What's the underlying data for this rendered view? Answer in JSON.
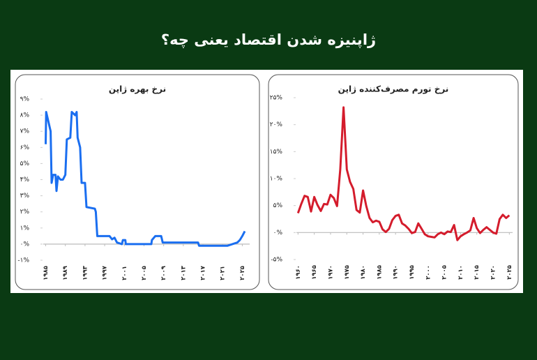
{
  "title": "ژاپنیزه شدن اقتصاد یعنی چه؟",
  "chart_data": [
    {
      "type": "line",
      "title": "نرخ بهره ژاپن",
      "color": "#1a6ef0",
      "x": [
        1985.0,
        1985.1,
        1986.0,
        1986.2,
        1986.5,
        1987.0,
        1987.2,
        1987.5,
        1988.0,
        1988.5,
        1989.0,
        1989.3,
        1990.0,
        1990.3,
        1991.0,
        1991.3,
        1991.5,
        1992.0,
        1992.3,
        1993.0,
        1993.3,
        1995.0,
        1995.2,
        1995.5,
        1998.0,
        1998.5,
        1999.0,
        1999.5,
        2000.5,
        2000.7,
        2001.2,
        2001.3,
        2006.5,
        2006.6,
        2007.3,
        2008.5,
        2008.8,
        2016.0,
        2016.2,
        2022.0,
        2024.0,
        2024.5,
        2025.0,
        2025.5
      ],
      "values": [
        6.2,
        8.2,
        7.0,
        3.8,
        4.3,
        4.3,
        3.3,
        4.2,
        4.0,
        4.0,
        4.3,
        6.5,
        6.6,
        8.2,
        8.0,
        8.2,
        6.6,
        6.0,
        3.8,
        3.8,
        2.3,
        2.2,
        2.0,
        0.5,
        0.5,
        0.3,
        0.4,
        0.1,
        0.0,
        0.25,
        0.25,
        0.0,
        0.0,
        0.25,
        0.5,
        0.5,
        0.1,
        0.1,
        -0.1,
        -0.1,
        0.1,
        0.25,
        0.5,
        0.8
      ],
      "xlim": [
        1984.5,
        2026.5
      ],
      "xticks": [
        {
          "value": 1985,
          "label": "۱۹۸۵"
        },
        {
          "value": 1989,
          "label": "۱۹۸۹"
        },
        {
          "value": 1993,
          "label": "۱۹۹۳"
        },
        {
          "value": 1997,
          "label": "۱۹۹۷"
        },
        {
          "value": 2001,
          "label": "۲۰۰۱"
        },
        {
          "value": 2005,
          "label": "۲۰۰۵"
        },
        {
          "value": 2009,
          "label": "۲۰۰۹"
        },
        {
          "value": 2013,
          "label": "۲۰۱۳"
        },
        {
          "value": 2017,
          "label": "۲۰۱۷"
        },
        {
          "value": 2021,
          "label": "۲۰۲۱"
        },
        {
          "value": 2025,
          "label": "۲۰۲۵"
        }
      ],
      "ylim": [
        -1,
        9
      ],
      "yticks": [
        {
          "value": -1,
          "label": "-۱%"
        },
        {
          "value": 0,
          "label": "۰%"
        },
        {
          "value": 1,
          "label": "۱%"
        },
        {
          "value": 2,
          "label": "۲%"
        },
        {
          "value": 3,
          "label": "۳%"
        },
        {
          "value": 4,
          "label": "۴%"
        },
        {
          "value": 5,
          "label": "۵%"
        },
        {
          "value": 6,
          "label": "۶%"
        },
        {
          "value": 7,
          "label": "۷%"
        },
        {
          "value": 8,
          "label": "۸%"
        },
        {
          "value": 9,
          "label": "۹%"
        }
      ]
    },
    {
      "type": "line",
      "title": "نرخ تورم مصرف‌کننده ژاپن",
      "color": "#d41c2c",
      "x": [
        1960,
        1961,
        1962,
        1963,
        1964,
        1965,
        1966,
        1967,
        1968,
        1969,
        1970,
        1971,
        1972,
        1973,
        1974,
        1975,
        1976,
        1977,
        1978,
        1979,
        1980,
        1981,
        1982,
        1983,
        1984,
        1985,
        1986,
        1987,
        1988,
        1989,
        1990,
        1991,
        1992,
        1993,
        1994,
        1995,
        1996,
        1997,
        1998,
        1999,
        2000,
        2001,
        2002,
        2003,
        2004,
        2005,
        2006,
        2007,
        2008,
        2009,
        2010,
        2011,
        2012,
        2013,
        2014,
        2015,
        2016,
        2017,
        2018,
        2019,
        2020,
        2021,
        2022,
        2023,
        2024,
        2025
      ],
      "values": [
        3.6,
        5.3,
        6.8,
        6.6,
        3.9,
        6.6,
        5.1,
        4.0,
        5.3,
        5.2,
        7.0,
        6.4,
        4.9,
        11.7,
        23.2,
        11.7,
        9.4,
        8.1,
        4.2,
        3.7,
        7.8,
        4.9,
        2.7,
        1.9,
        2.2,
        2.0,
        0.6,
        0.1,
        0.7,
        2.3,
        3.1,
        3.3,
        1.7,
        1.3,
        0.7,
        -0.1,
        0.1,
        1.7,
        0.7,
        -0.3,
        -0.7,
        -0.8,
        -0.9,
        -0.3,
        0.0,
        -0.3,
        0.2,
        0.1,
        1.4,
        -1.4,
        -0.7,
        -0.3,
        0.0,
        0.4,
        2.7,
        0.8,
        -0.1,
        0.5,
        1.0,
        0.5,
        0.0,
        -0.2,
        2.5,
        3.3,
        2.7,
        3.2
      ],
      "xlim": [
        1959.5,
        2026
      ],
      "xticks": [
        {
          "value": 1960,
          "label": "۱۹۶۰"
        },
        {
          "value": 1965,
          "label": "۱۹۶۵"
        },
        {
          "value": 1970,
          "label": "۱۹۷۰"
        },
        {
          "value": 1975,
          "label": "۱۹۷۵"
        },
        {
          "value": 1980,
          "label": "۱۹۸۰"
        },
        {
          "value": 1985,
          "label": "۱۹۸۵"
        },
        {
          "value": 1990,
          "label": "۱۹۹۰"
        },
        {
          "value": 1995,
          "label": "۱۹۹۵"
        },
        {
          "value": 2000,
          "label": "۲۰۰۰"
        },
        {
          "value": 2005,
          "label": "۲۰۰۵"
        },
        {
          "value": 2010,
          "label": "۲۰۱۰"
        },
        {
          "value": 2015,
          "label": "۲۰۱۵"
        },
        {
          "value": 2020,
          "label": "۲۰۲۰"
        },
        {
          "value": 2025,
          "label": "۲۰۲۵"
        }
      ],
      "ylim": [
        -5,
        25
      ],
      "yticks": [
        {
          "value": -5,
          "label": "-۵%"
        },
        {
          "value": 0,
          "label": "۰%"
        },
        {
          "value": 5,
          "label": "۵%"
        },
        {
          "value": 10,
          "label": "۱۰%"
        },
        {
          "value": 15,
          "label": "۱۵%"
        },
        {
          "value": 20,
          "label": "۲۰%"
        },
        {
          "value": 25,
          "label": "۲۵%"
        }
      ]
    }
  ]
}
